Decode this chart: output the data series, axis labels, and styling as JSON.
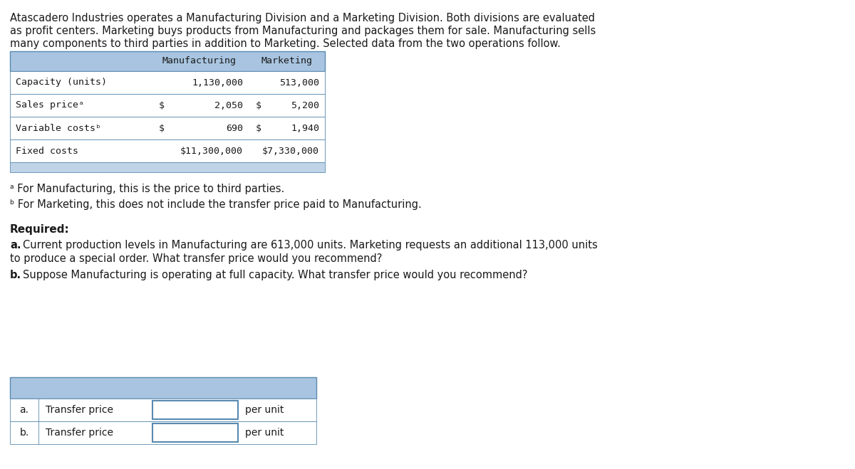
{
  "intro_lines": [
    "Atascadero Industries operates a Manufacturing Division and a Marketing Division. Both divisions are evaluated",
    "as profit centers. Marketing buys products from Manufacturing and packages them for sale. Manufacturing sells",
    "many components to third parties in addition to Marketing. Selected data from the two operations follow."
  ],
  "table_rows": [
    [
      "Capacity (units)",
      "1,130,000",
      "513,000"
    ],
    [
      "Sales priceᵃ",
      "$",
      "2,050",
      "$",
      "5,200"
    ],
    [
      "Variable costsᵇ",
      "$",
      "690",
      "$",
      "1,940"
    ],
    [
      "Fixed costs",
      "$11,300,000",
      "$7,330,000"
    ]
  ],
  "footnote_a": "ᵃ For Manufacturing, this is the price to third parties.",
  "footnote_b": "ᵇ For Marketing, this does not include the transfer price paid to Manufacturing.",
  "required_label": "Required:",
  "req_a_bold": "a.",
  "req_a_text": " Current production levels in Manufacturing are 613,000 units. Marketing requests an additional 113,000 units",
  "req_a_line2": "to produce a special order. What transfer price would you recommend?",
  "req_b_bold": "b.",
  "req_b_text": " Suppose Manufacturing is operating at full capacity. What transfer price would you recommend?",
  "answer_rows": [
    [
      "a.",
      "Transfer price",
      "per unit"
    ],
    [
      "b.",
      "Transfer price",
      "per unit"
    ]
  ],
  "header_bg": "#a8c4e0",
  "table_border": "#5a8ab0",
  "bg_color": "#ffffff",
  "mono_font": "DejaVu Sans Mono",
  "sans_font": "DejaVu Sans",
  "text_color": "#1a1a1a"
}
